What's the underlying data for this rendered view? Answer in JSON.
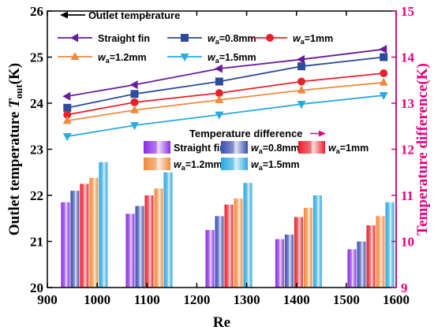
{
  "chart_data": {
    "type": "line+bar",
    "x_axis": {
      "label": "Re",
      "range": [
        900,
        1600
      ],
      "ticks": [
        900,
        1000,
        1100,
        1200,
        1300,
        1400,
        1500,
        1600
      ]
    },
    "y_left": {
      "label_prefix": "Outlet temperature ",
      "label_var": "T",
      "label_sub": "out",
      "label_suffix": "(K)",
      "range": [
        20,
        26
      ],
      "ticks": [
        20,
        21,
        22,
        23,
        24,
        25,
        26
      ],
      "color": "#000000"
    },
    "y_right": {
      "label": "Temperature difference(K)",
      "range": [
        9,
        15
      ],
      "ticks": [
        9,
        10,
        11,
        12,
        13,
        14,
        15
      ],
      "color": "#e6007e"
    },
    "annotations": {
      "outlet": "Outlet temperature",
      "difference": "Temperature difference"
    },
    "line_series": [
      {
        "name_plain": "Straight fin",
        "color": "#6a1b9a",
        "marker": "triangle-left",
        "x": [
          940,
          1075,
          1245,
          1410,
          1575
        ],
        "y": [
          24.15,
          24.4,
          24.75,
          24.95,
          25.17
        ]
      },
      {
        "name_var": "w",
        "name_sub": "a",
        "name_rest": "=0.8mm",
        "color": "#2e4b9b",
        "marker": "square",
        "x": [
          940,
          1075,
          1245,
          1410,
          1575
        ],
        "y": [
          23.9,
          24.2,
          24.47,
          24.8,
          25.0
        ]
      },
      {
        "name_var": "w",
        "name_sub": "a",
        "name_rest": "=1mm",
        "color": "#e8202a",
        "marker": "circle",
        "x": [
          940,
          1075,
          1245,
          1410,
          1575
        ],
        "y": [
          23.75,
          24.02,
          24.22,
          24.47,
          24.65
        ]
      },
      {
        "name_var": "w",
        "name_sub": "a",
        "name_rest": "=1.2mm",
        "color": "#ef8a3c",
        "marker": "triangle-up",
        "x": [
          940,
          1075,
          1245,
          1410,
          1575
        ],
        "y": [
          23.62,
          23.85,
          24.07,
          24.28,
          24.45
        ]
      },
      {
        "name_var": "w",
        "name_sub": "a",
        "name_rest": "=1.5mm",
        "color": "#29a9e0",
        "marker": "triangle-down",
        "x": [
          940,
          1075,
          1245,
          1410,
          1575
        ],
        "y": [
          23.28,
          23.52,
          23.75,
          23.98,
          24.17
        ]
      }
    ],
    "bar_groups": {
      "centers": [
        975,
        1105,
        1265,
        1405,
        1550
      ],
      "series": [
        {
          "name_plain": "Straight fin",
          "color": "#8a2be2",
          "values": [
            10.85,
            10.6,
            10.25,
            10.05,
            9.83
          ]
        },
        {
          "name_var": "w",
          "name_sub": "a",
          "name_rest": "=0.8mm",
          "color": "#3b4fb0",
          "values": [
            11.1,
            10.77,
            10.55,
            10.15,
            10.0
          ]
        },
        {
          "name_var": "w",
          "name_sub": "a",
          "name_rest": "=1mm",
          "color": "#e8202a",
          "values": [
            11.25,
            11.0,
            10.8,
            10.53,
            10.35
          ]
        },
        {
          "name_var": "w",
          "name_sub": "a",
          "name_rest": "=1.2mm",
          "color": "#ef8a3c",
          "values": [
            11.38,
            11.15,
            10.93,
            10.73,
            10.55
          ]
        },
        {
          "name_var": "w",
          "name_sub": "a",
          "name_rest": "=1.5mm",
          "color": "#29a9e0",
          "values": [
            11.72,
            11.5,
            11.27,
            11.0,
            10.85
          ]
        }
      ]
    }
  }
}
